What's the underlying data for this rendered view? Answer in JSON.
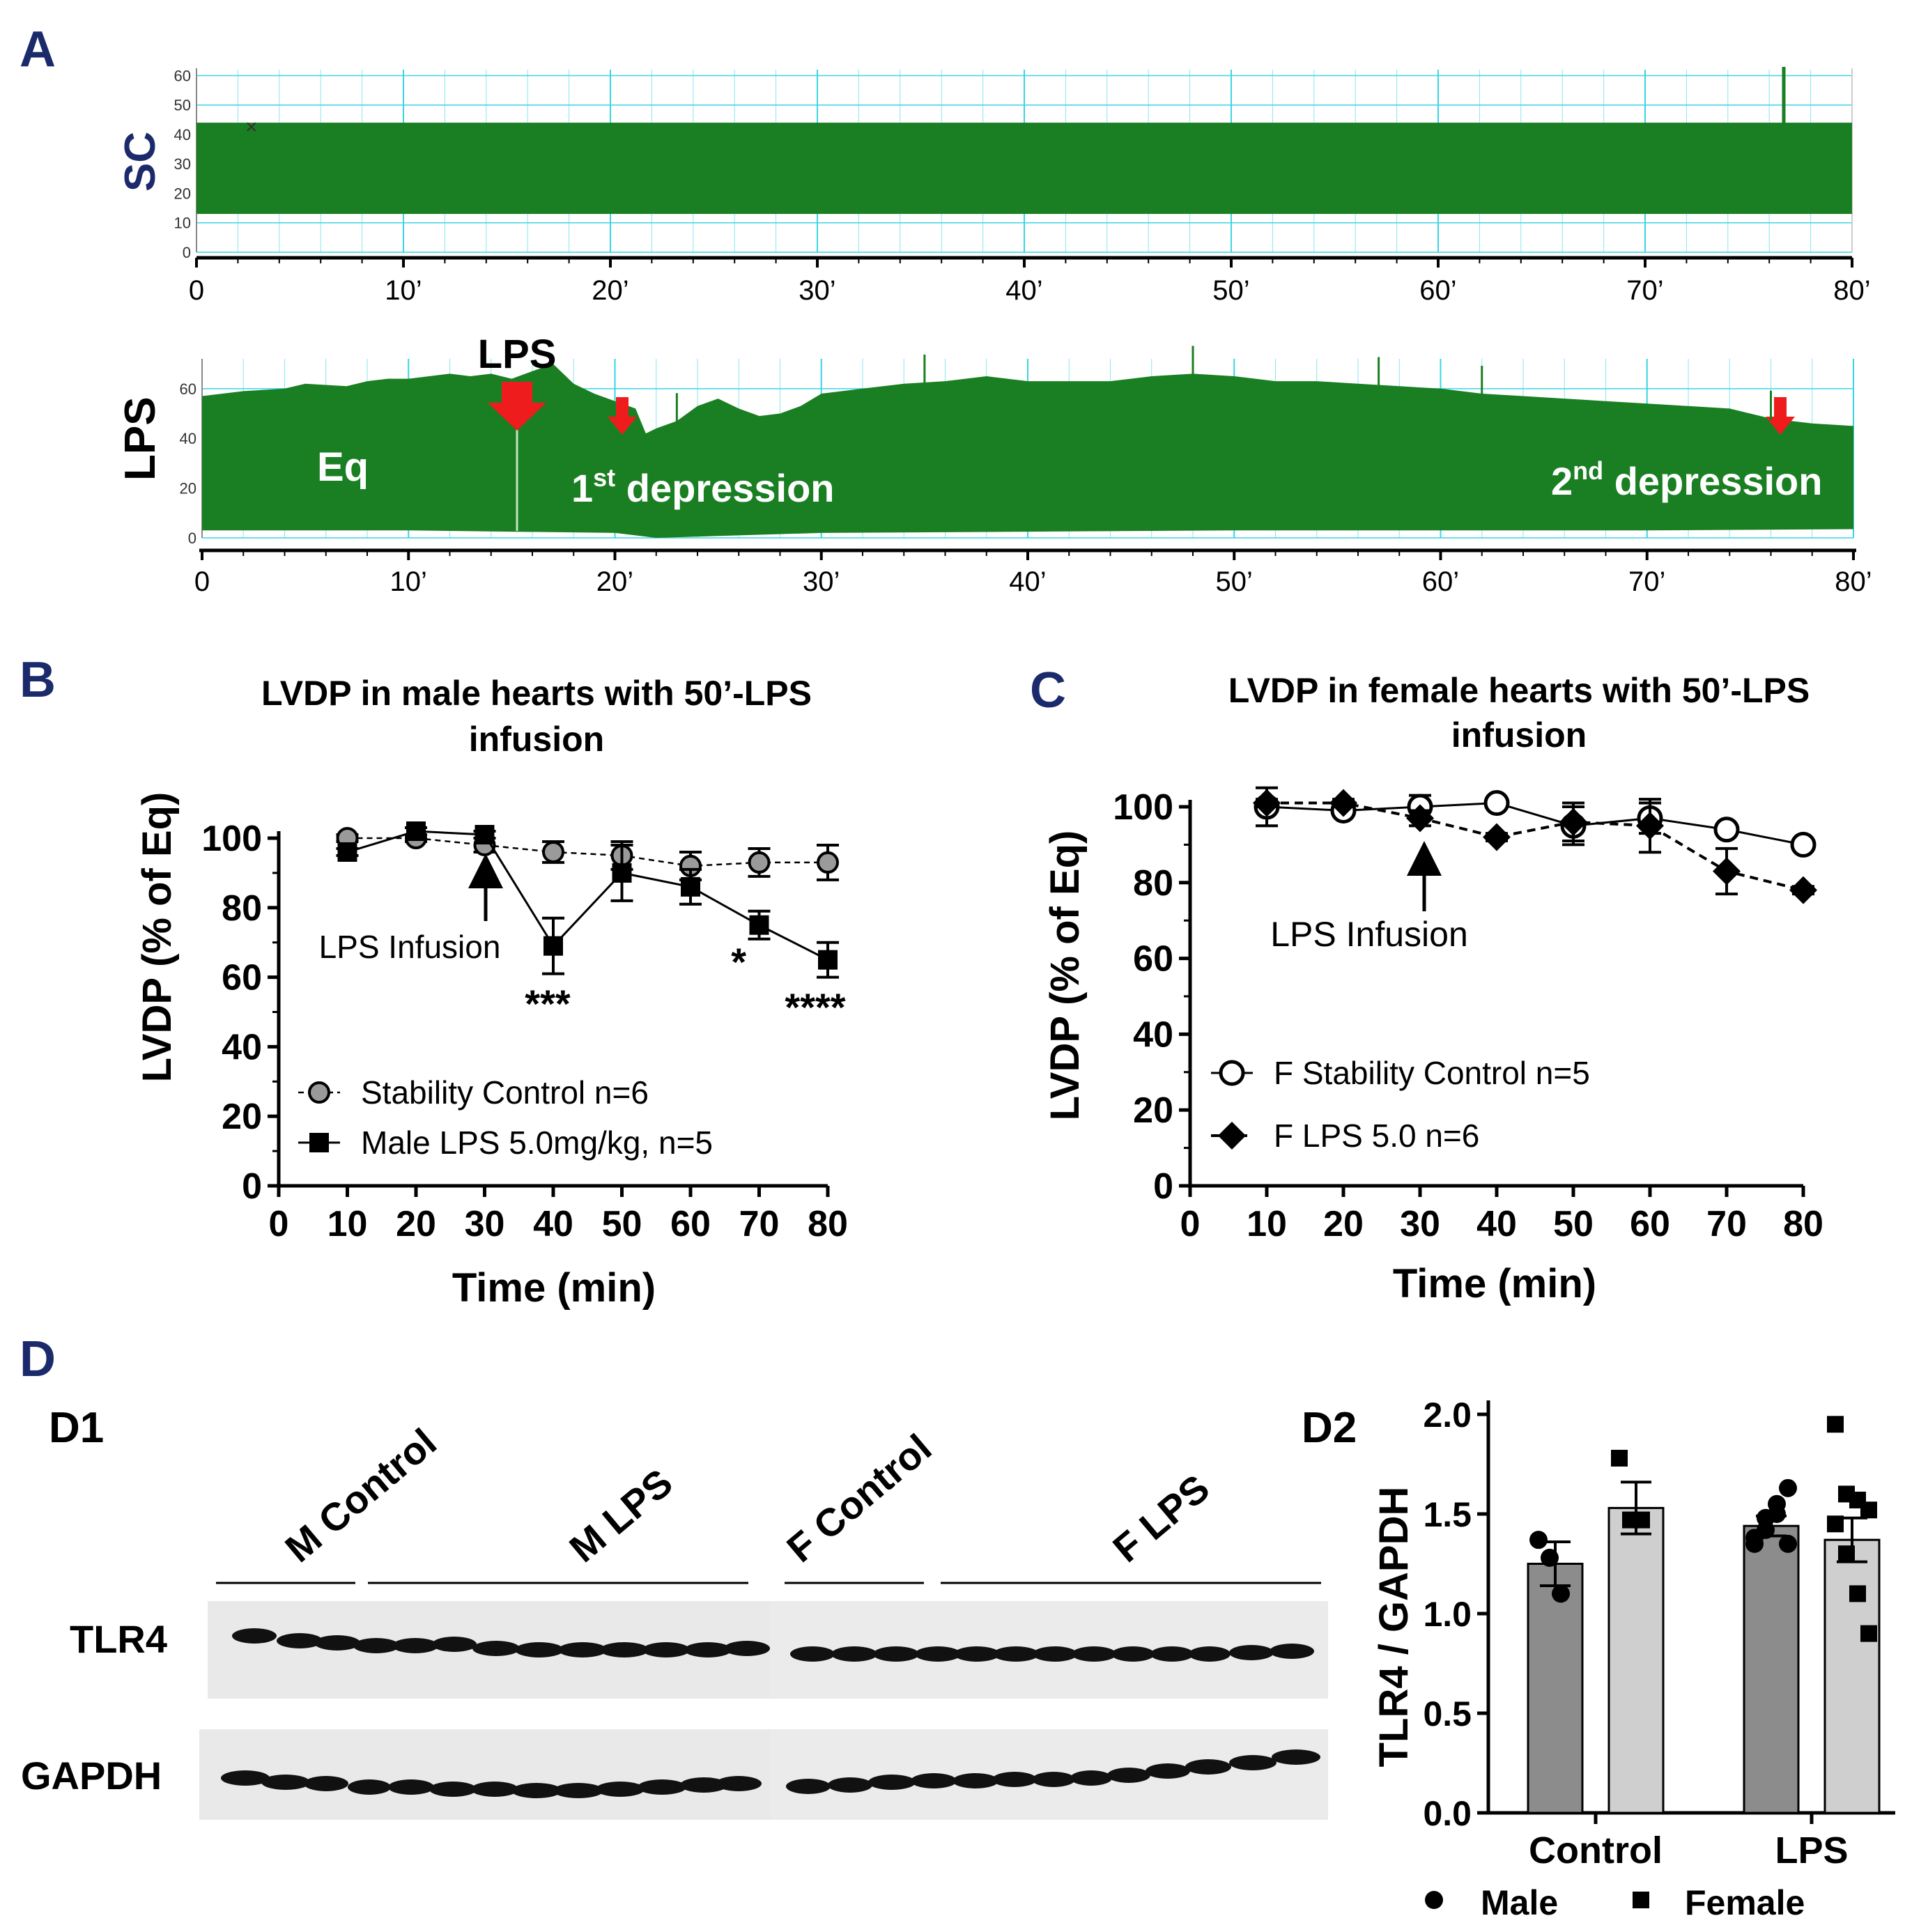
{
  "panels": {
    "A": {
      "letter": "A"
    },
    "B": {
      "letter": "B"
    },
    "C": {
      "letter": "C"
    },
    "D": {
      "letter": "D",
      "d1": "D1",
      "d2": "D2"
    }
  },
  "colors": {
    "trace": "#1a7f22",
    "grid": "#39d4e6",
    "arrow": "#ee1c1c",
    "panel_letter": "#1b2a6b",
    "male_bar": "#8c8c8c",
    "female_bar": "#cfcfcf"
  },
  "chart_data": [
    {
      "id": "A-SC",
      "type": "line",
      "ylabel": "SC",
      "y_ticks": [
        "0",
        "10",
        "20",
        "30",
        "40",
        "50",
        "60"
      ],
      "ylim": [
        0,
        62
      ],
      "x_ticks": [
        "0",
        "10’",
        "20’",
        "30’",
        "40’",
        "50’",
        "60’",
        "70’",
        "80’"
      ],
      "xlim": [
        0,
        80
      ],
      "trace": {
        "upper": 44,
        "lower": 13
      }
    },
    {
      "id": "A-LPS",
      "type": "line",
      "ylabel": "LPS",
      "y_ticks": [
        "0",
        "20",
        "40",
        "60"
      ],
      "ylim": [
        0,
        72
      ],
      "x_ticks": [
        "0",
        "10’",
        "20’",
        "30’",
        "40’",
        "50’",
        "60’",
        "70’",
        "80’"
      ],
      "xlim": [
        0,
        80
      ],
      "annotations": {
        "lps": "LPS",
        "eq": "Eq",
        "dep1_num": "1",
        "dep1_sup": "st",
        "dep1_word": " depression",
        "dep2_num": "2",
        "dep2_sup": "nd",
        "dep2_word": " depression"
      },
      "upper_envelope": [
        [
          0,
          57
        ],
        [
          2,
          59
        ],
        [
          4,
          60
        ],
        [
          5,
          62
        ],
        [
          7,
          61
        ],
        [
          8,
          63
        ],
        [
          9,
          64
        ],
        [
          10,
          64
        ],
        [
          11,
          65
        ],
        [
          12,
          66
        ],
        [
          13,
          65
        ],
        [
          14,
          66
        ],
        [
          15,
          64
        ],
        [
          16,
          67
        ],
        [
          17,
          70
        ],
        [
          18,
          62
        ],
        [
          19,
          58
        ],
        [
          20,
          55
        ],
        [
          21,
          52
        ],
        [
          21.5,
          42
        ],
        [
          22,
          44
        ],
        [
          23,
          47
        ],
        [
          24,
          53
        ],
        [
          25,
          56
        ],
        [
          26,
          52
        ],
        [
          27,
          49
        ],
        [
          28,
          50
        ],
        [
          29,
          53
        ],
        [
          30,
          58
        ],
        [
          32,
          60
        ],
        [
          34,
          62
        ],
        [
          36,
          63
        ],
        [
          38,
          65
        ],
        [
          40,
          63
        ],
        [
          42,
          63
        ],
        [
          44,
          63
        ],
        [
          46,
          65
        ],
        [
          48,
          66
        ],
        [
          50,
          65
        ],
        [
          52,
          63
        ],
        [
          54,
          63
        ],
        [
          56,
          62
        ],
        [
          58,
          61
        ],
        [
          60,
          60
        ],
        [
          62,
          58
        ],
        [
          64,
          57
        ],
        [
          66,
          56
        ],
        [
          68,
          55
        ],
        [
          70,
          54
        ],
        [
          72,
          53
        ],
        [
          74,
          52
        ],
        [
          76,
          48
        ],
        [
          78,
          46
        ],
        [
          80,
          45
        ]
      ],
      "lower_envelope": [
        [
          0,
          3
        ],
        [
          10,
          3
        ],
        [
          20,
          2
        ],
        [
          22,
          0
        ],
        [
          26,
          1
        ],
        [
          30,
          2
        ],
        [
          40,
          2.5
        ],
        [
          50,
          3
        ],
        [
          60,
          3
        ],
        [
          70,
          3
        ],
        [
          80,
          3.5
        ]
      ]
    },
    {
      "id": "B",
      "type": "line",
      "title": "LVDP in male hearts with 50’-LPS infusion",
      "title_lines": [
        "LVDP in male hearts with 50’-LPS",
        "infusion"
      ],
      "xlabel": "Time (min)",
      "ylabel": "LVDP (% of Eq)",
      "xlim": [
        0,
        80
      ],
      "ylim": [
        0,
        100
      ],
      "x_ticks": [
        0,
        10,
        20,
        30,
        40,
        50,
        60,
        70,
        80
      ],
      "y_ticks": [
        0,
        20,
        40,
        60,
        80,
        100
      ],
      "annotation": "LPS Infusion",
      "x": [
        10,
        20,
        30,
        40,
        50,
        60,
        70,
        80
      ],
      "series": [
        {
          "name": "Stability Control n=6",
          "values": [
            100,
            100,
            98,
            96,
            95,
            92,
            93,
            93
          ],
          "err": [
            1,
            1,
            2,
            3,
            4,
            4,
            4,
            5
          ]
        },
        {
          "name": "Male LPS 5.0mg/kg, n=5",
          "values": [
            96,
            102,
            101,
            69,
            90,
            86,
            75,
            65
          ],
          "err": [
            1,
            1,
            1,
            8,
            8,
            5,
            4,
            5
          ]
        }
      ],
      "significance": [
        {
          "x": 40,
          "label": "***"
        },
        {
          "x": 66,
          "label": "*"
        },
        {
          "x": 80,
          "label": "****"
        }
      ]
    },
    {
      "id": "C",
      "type": "line",
      "title": "LVDP in female hearts with 50’-LPS infusion",
      "title_lines": [
        "LVDP in female hearts with 50’-LPS",
        "infusion"
      ],
      "xlabel": "Time (min)",
      "ylabel": "LVDP (% of Eq)",
      "xlim": [
        0,
        80
      ],
      "ylim": [
        0,
        100
      ],
      "x_ticks": [
        0,
        10,
        20,
        30,
        40,
        50,
        60,
        70,
        80
      ],
      "y_ticks": [
        0,
        20,
        40,
        60,
        80,
        100
      ],
      "annotation": "LPS Infusion",
      "x": [
        10,
        20,
        30,
        40,
        50,
        60,
        70,
        80
      ],
      "series": [
        {
          "name": "F Stability Control n=5",
          "values": [
            100,
            99,
            100,
            101,
            95,
            97,
            94,
            90
          ],
          "err": [
            5,
            1,
            3,
            1,
            5,
            4,
            1,
            1
          ]
        },
        {
          "name": "F LPS 5.0 n=6",
          "values": [
            101,
            101,
            97,
            92,
            96,
            95,
            83,
            78
          ],
          "err": [
            1,
            1,
            2,
            1,
            5,
            7,
            6,
            1
          ]
        }
      ]
    },
    {
      "id": "D1",
      "type": "table",
      "groups": [
        "M Control",
        "M LPS",
        "F Control",
        "F LPS"
      ],
      "blots": [
        "TLR4",
        "GAPDH"
      ]
    },
    {
      "id": "D2",
      "type": "bar",
      "ylabel": "TLR4 / GAPDH",
      "ylim": [
        0,
        2.0
      ],
      "y_ticks": [
        "0.0",
        "0.5",
        "1.0",
        "1.5",
        "2.0"
      ],
      "categories": [
        "Control",
        "LPS"
      ],
      "series": [
        {
          "name": "Male",
          "values": [
            1.25,
            1.44
          ],
          "err": [
            0.11,
            0.05
          ],
          "points": [
            [
              1.37,
              1.28,
              1.1
            ],
            [
              1.35,
              1.48,
              1.55,
              1.63,
              1.38,
              1.42,
              1.5,
              1.35
            ]
          ]
        },
        {
          "name": "Female",
          "values": [
            1.53,
            1.37
          ],
          "err": [
            0.13,
            0.11
          ],
          "points": [
            [
              1.78,
              1.47,
              1.47
            ],
            [
              1.95,
              1.6,
              1.57,
              1.52,
              1.45,
              1.3,
              1.1,
              0.9
            ]
          ]
        }
      ]
    }
  ]
}
